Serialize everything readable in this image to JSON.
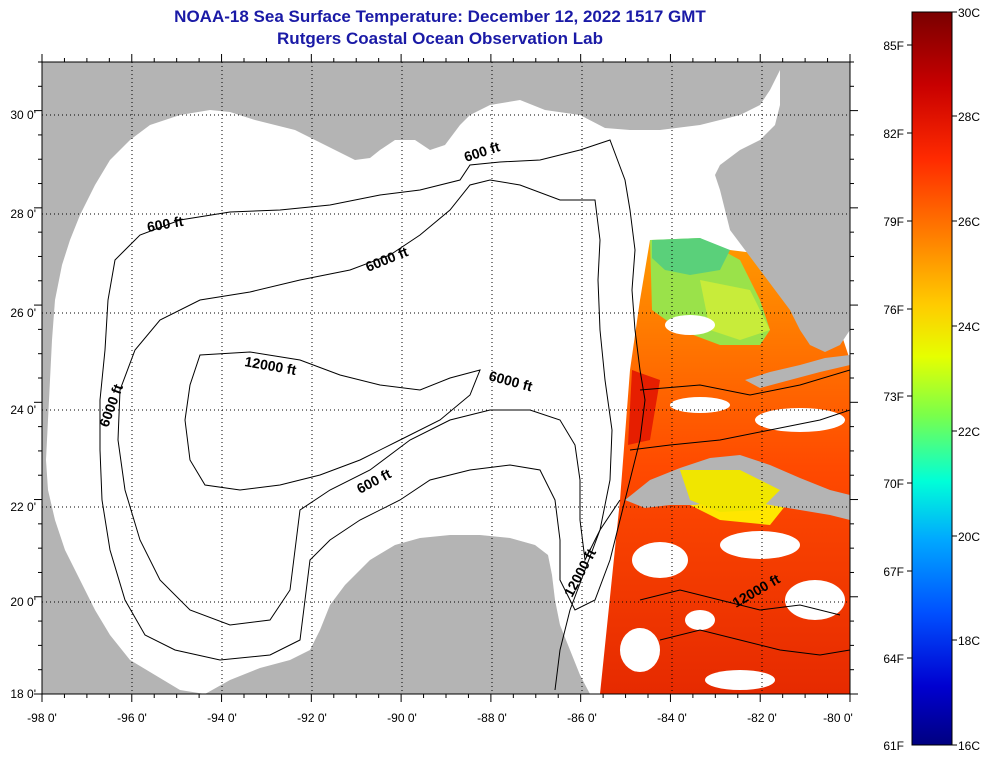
{
  "header": {
    "title": "NOAA-18 Sea Surface Temperature:  December 12, 2022 1517 GMT",
    "subtitle": "Rutgers Coastal Ocean Observation Lab"
  },
  "map": {
    "lon_range": [
      -98,
      -80
    ],
    "lat_range": [
      18,
      31
    ],
    "lon_ticks": [
      "-98 0'",
      "-96 0'",
      "-94 0'",
      "-92 0'",
      "-90 0'",
      "-88 0'",
      "-86 0'",
      "-84 0'",
      "-82 0'",
      "-80 0'"
    ],
    "lat_ticks": [
      "30 0'",
      "28 0'",
      "26 0'",
      "24 0'",
      "22 0'",
      "20 0'",
      "18 0'"
    ],
    "land_color": "#b4b4b4",
    "water_color": "#ffffff",
    "contour_labels": {
      "c600_north": "600 ft",
      "c600_west": "600 ft",
      "c600_yucatan": "600 ft",
      "c6000_north": "6000 ft",
      "c6000_west": "6000 ft",
      "c6000_east": "6000 ft",
      "c12000_center": "12000 ft",
      "c12000_yucatan": "12000 ft",
      "c12000_carib": "12000 ft"
    }
  },
  "colorbar": {
    "fahrenheit": [
      "85F",
      "82F",
      "79F",
      "76F",
      "73F",
      "70F",
      "67F",
      "64F",
      "61F"
    ],
    "celsius": [
      "30C",
      "28C",
      "26C",
      "24C",
      "22C",
      "20C",
      "18C",
      "16C"
    ],
    "colors": [
      "#7a0000",
      "#c80000",
      "#ff2a00",
      "#ff7a00",
      "#ffcc00",
      "#e6ff00",
      "#7aff4a",
      "#00ffd8",
      "#00a8ff",
      "#0050ff",
      "#0000d0",
      "#000080"
    ]
  }
}
